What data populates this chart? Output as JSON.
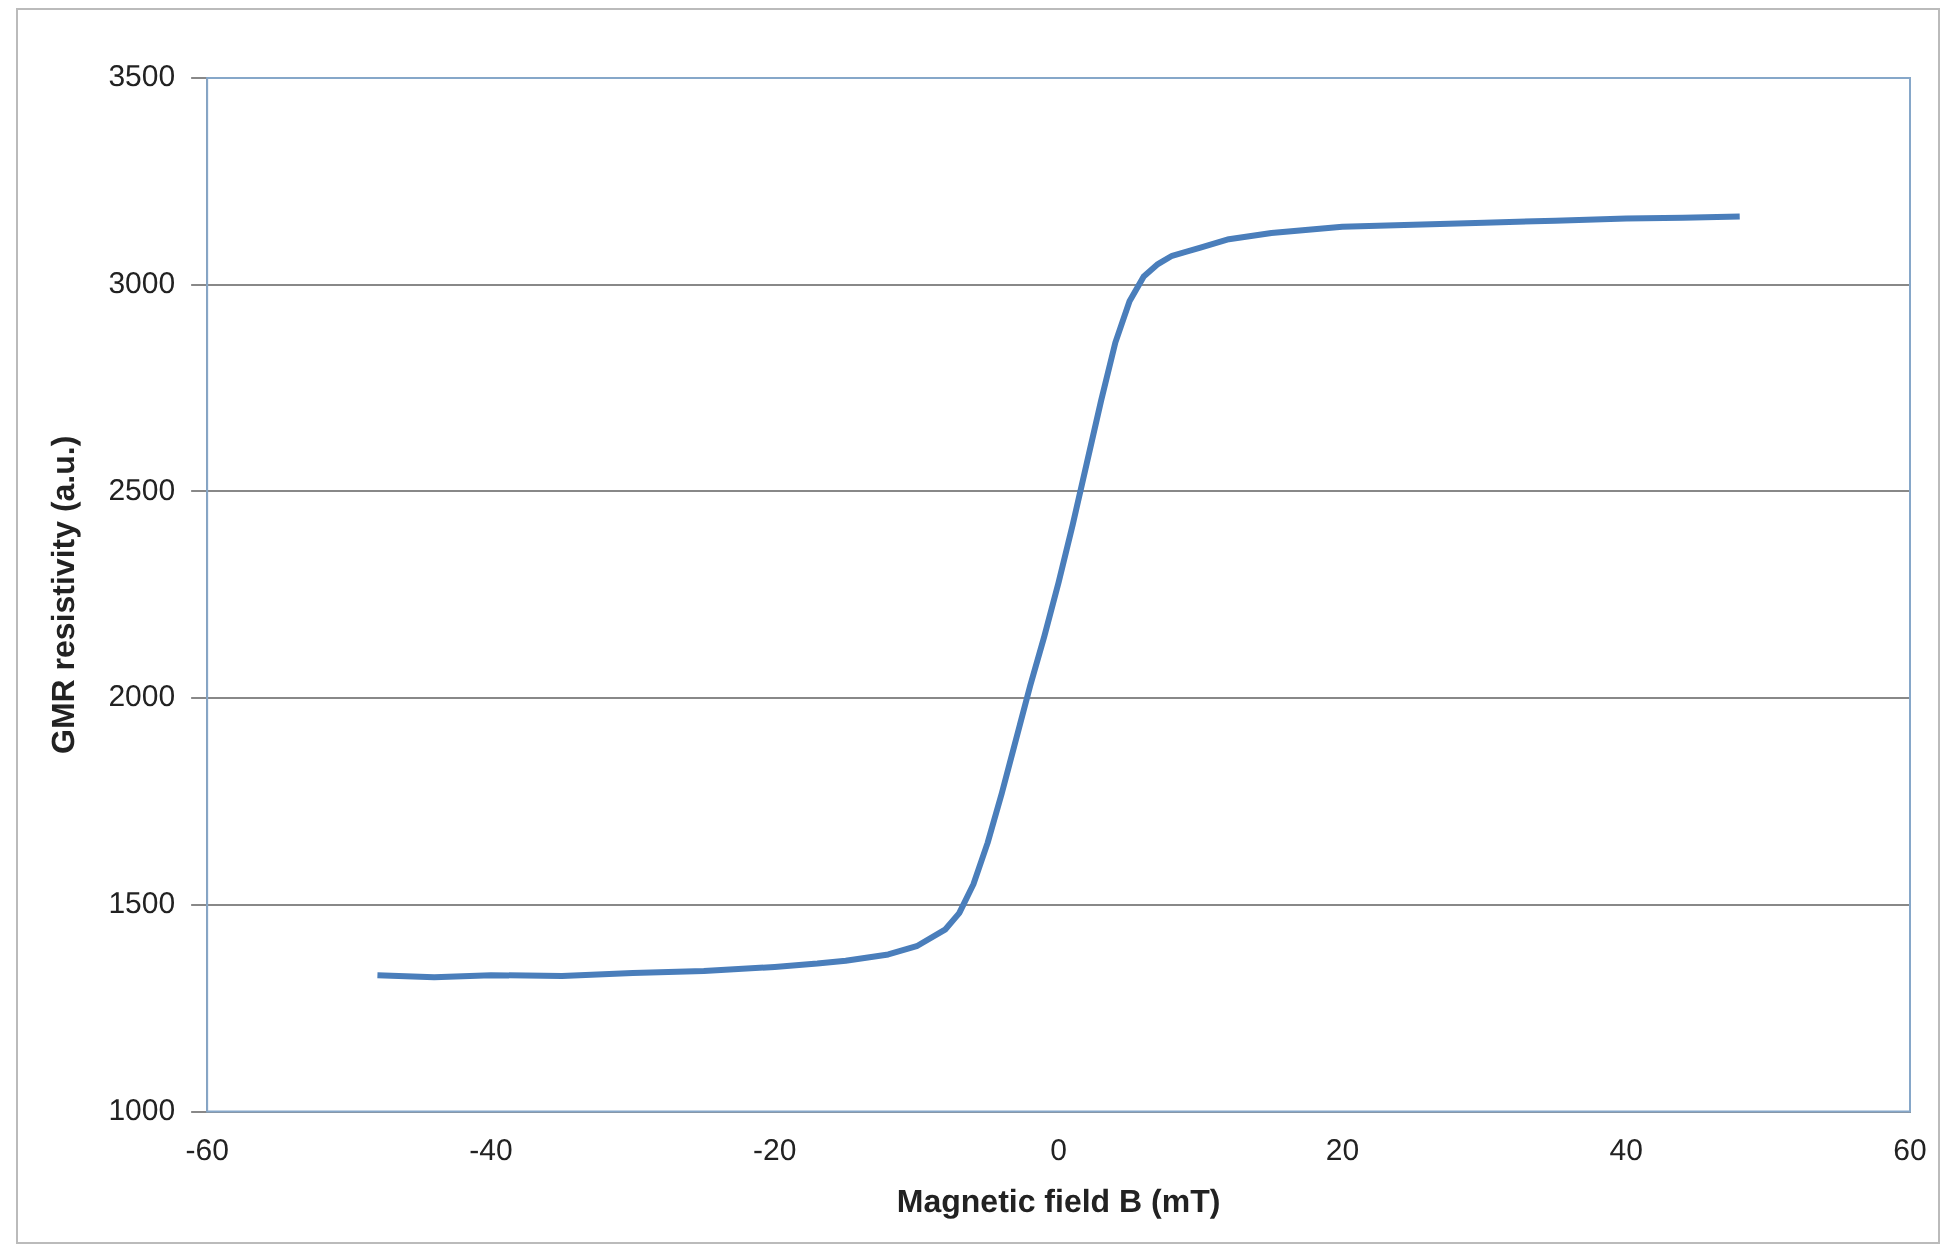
{
  "chart_data": {
    "type": "line",
    "xlabel": "Magnetic field B (mT)",
    "ylabel": "GMR resistivity (a.u.)",
    "xlim": [
      -60,
      60
    ],
    "xticks": [
      -60,
      -40,
      -20,
      0,
      20,
      40,
      60
    ],
    "ylim": [
      1000,
      3500
    ],
    "yticks": [
      1000,
      1500,
      2000,
      2500,
      3000,
      3500
    ],
    "grid": "y",
    "legend": false,
    "marker": "none",
    "line_style": "solid",
    "series": [
      {
        "color": "#4a7ebb",
        "x": [
          -48,
          -44,
          -40,
          -35,
          -30,
          -25,
          -20,
          -17,
          -15,
          -12,
          -10,
          -8,
          -7,
          -6,
          -5,
          -4,
          -3,
          -2,
          -1,
          0,
          1,
          2,
          3,
          4,
          5,
          6,
          7,
          8,
          10,
          12,
          15,
          20,
          25,
          30,
          35,
          40,
          44,
          48
        ],
        "values": [
          1330,
          1325,
          1330,
          1328,
          1335,
          1340,
          1350,
          1358,
          1365,
          1380,
          1400,
          1440,
          1480,
          1550,
          1650,
          1770,
          1900,
          2030,
          2150,
          2280,
          2420,
          2570,
          2720,
          2860,
          2960,
          3020,
          3050,
          3070,
          3090,
          3110,
          3125,
          3140,
          3145,
          3150,
          3155,
          3160,
          3162,
          3165
        ]
      }
    ]
  }
}
